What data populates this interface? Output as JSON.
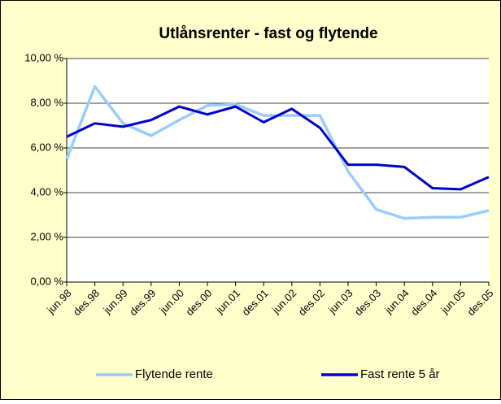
{
  "chart_data": {
    "type": "line",
    "title": "Utlånsrenter - fast og flytende",
    "categories": [
      "jun.98",
      "des.98",
      "jun.99",
      "des.99",
      "jun.00",
      "des.00",
      "jun.01",
      "des.01",
      "jun.02",
      "des.02",
      "jun.03",
      "des.03",
      "jun.04",
      "des.04",
      "jun.05",
      "des.05"
    ],
    "series": [
      {
        "name": "Flytende rente",
        "color": "#99ccff",
        "values": [
          5.5,
          8.75,
          7.1,
          6.55,
          7.25,
          7.9,
          7.95,
          7.45,
          7.45,
          7.45,
          4.95,
          3.25,
          2.85,
          2.9,
          2.9,
          3.2
        ]
      },
      {
        "name": "Fast rente 5 år",
        "color": "#0000cc",
        "values": [
          6.5,
          7.1,
          6.95,
          7.25,
          7.85,
          7.5,
          7.85,
          7.15,
          7.75,
          6.9,
          5.25,
          5.25,
          5.15,
          4.2,
          4.15,
          4.7
        ]
      }
    ],
    "ylim": [
      0,
      10
    ],
    "yticks": [
      {
        "value": 0,
        "label": "0,00 %"
      },
      {
        "value": 2,
        "label": "2,00 %"
      },
      {
        "value": 4,
        "label": "4,00 %"
      },
      {
        "value": 6,
        "label": "6,00 %"
      },
      {
        "value": 8,
        "label": "8,00 %"
      },
      {
        "value": 10,
        "label": "10,00 %"
      }
    ],
    "grid": true,
    "legend": "bottom"
  }
}
